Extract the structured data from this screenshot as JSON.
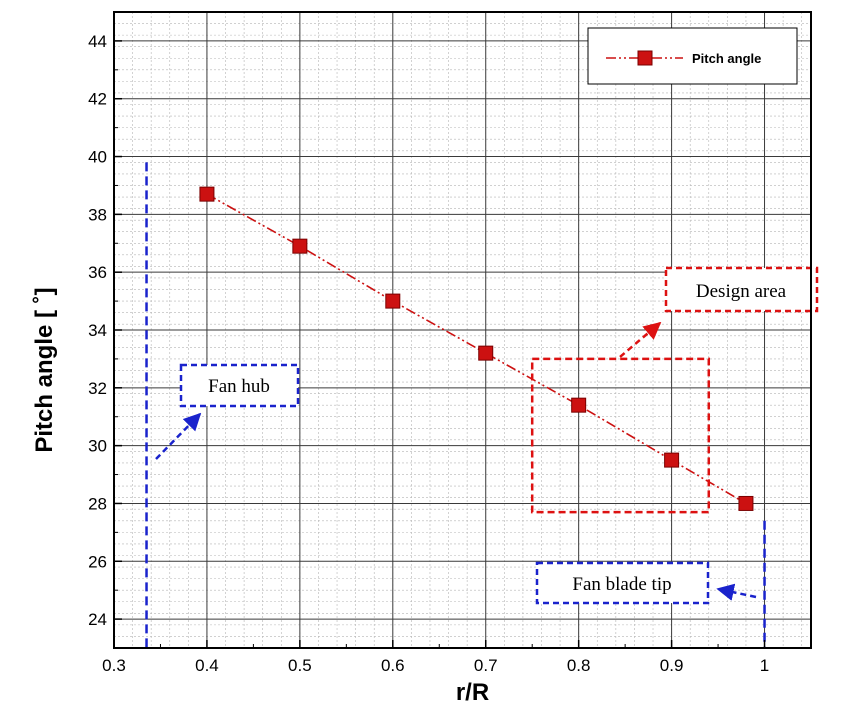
{
  "chart_data": {
    "type": "line",
    "xlabel": "r/R",
    "ylabel": "Pitch angle [ ˚]",
    "xlim": [
      0.3,
      1.05
    ],
    "ylim": [
      23,
      45
    ],
    "x_ticks": [
      "0.3",
      "0.4",
      "0.5",
      "0.6",
      "0.7",
      "0.8",
      "0.9",
      "1"
    ],
    "y_ticks": [
      "24",
      "26",
      "28",
      "30",
      "32",
      "34",
      "36",
      "38",
      "40",
      "42",
      "44"
    ],
    "grid": true,
    "legend_position": "top-right",
    "series": [
      {
        "name": "Pitch angle",
        "color": "#cc1111",
        "line_style": "dash-dot-dot",
        "marker": "square",
        "points": [
          {
            "x": 0.4,
            "y": 38.7
          },
          {
            "x": 0.5,
            "y": 36.9
          },
          {
            "x": 0.6,
            "y": 35.0
          },
          {
            "x": 0.7,
            "y": 33.2
          },
          {
            "x": 0.8,
            "y": 31.4
          },
          {
            "x": 0.9,
            "y": 29.5
          },
          {
            "x": 0.98,
            "y": 28.0
          }
        ]
      }
    ],
    "annotations": [
      {
        "label": "Fan hub",
        "color": "#1a23cc",
        "reference_x": 0.335
      },
      {
        "label": "Fan blade tip",
        "color": "#1a23cc",
        "reference_x": 1.0
      },
      {
        "label": "Design area",
        "color": "#dd1111",
        "x_range": [
          0.75,
          0.94
        ],
        "y_range": [
          27.7,
          33.0
        ]
      }
    ]
  }
}
